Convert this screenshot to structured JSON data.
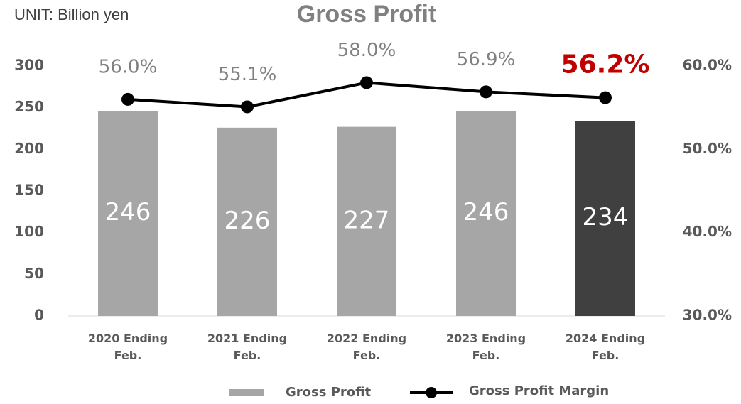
{
  "chart_data": {
    "type": "bar_line",
    "title": "Gross Profit",
    "unit_label": "UNIT: Billion yen",
    "categories": [
      "2020 Ending Feb.",
      "2021 Ending Feb.",
      "2022 Ending Feb.",
      "2023 Ending Feb.",
      "2024 Ending Feb."
    ],
    "series": [
      {
        "name": "Gross Profit",
        "type": "bar",
        "color": "#a6a6a6",
        "colors": [
          "#a6a6a6",
          "#a6a6a6",
          "#a6a6a6",
          "#a6a6a6",
          "#404040"
        ],
        "values": [
          246,
          226,
          227,
          246,
          234
        ]
      },
      {
        "name": "Gross Profit Margin",
        "type": "line",
        "axis": "y2",
        "color": "#000000",
        "values": [
          56.0,
          55.1,
          58.0,
          56.9,
          56.2
        ],
        "value_labels": [
          "56.0%",
          "55.1%",
          "58.0%",
          "56.9%",
          "56.2%"
        ],
        "label_colors": [
          "#808080",
          "#808080",
          "#808080",
          "#808080",
          "#c00000"
        ]
      }
    ],
    "ylim": [
      0,
      300
    ],
    "yticks": [
      0,
      50,
      100,
      150,
      200,
      250,
      300
    ],
    "y2lim": [
      30,
      60
    ],
    "y2ticks": [
      {
        "value": 30,
        "label": "30.0%"
      },
      {
        "value": 40,
        "label": "40.0%"
      },
      {
        "value": 50,
        "label": "50.0%"
      },
      {
        "value": 60,
        "label": "60.0%"
      }
    ],
    "grid": false,
    "legend": "bottom"
  }
}
